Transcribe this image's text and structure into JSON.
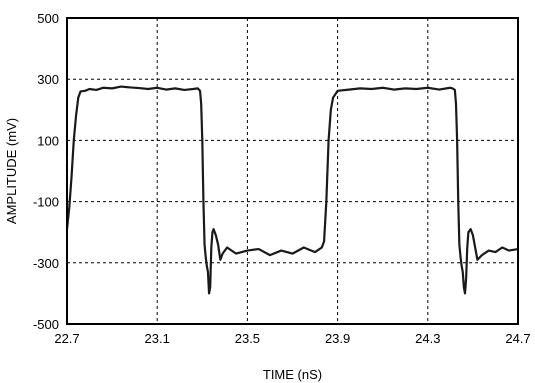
{
  "chart_data": {
    "type": "line",
    "title": "",
    "xlabel": "TIME (nS)",
    "ylabel": "AMPLITUDE (mV)",
    "xlim": [
      22.7,
      24.7
    ],
    "ylim": [
      -500,
      500
    ],
    "x_ticks": [
      22.7,
      23.1,
      23.5,
      23.9,
      24.3,
      24.7
    ],
    "x_tick_labels": [
      "22.7",
      "23.1",
      "23.5",
      "23.9",
      "24.3",
      "24.7"
    ],
    "y_ticks": [
      500,
      300,
      100,
      -100,
      -300,
      -500
    ],
    "y_tick_labels": [
      "500",
      "300",
      "100",
      "-100",
      "-300",
      "-500"
    ],
    "grid": true,
    "line_color": "#1a1a1a",
    "series": [
      {
        "x": [
          22.7,
          22.71,
          22.72,
          22.73,
          22.74,
          22.75,
          22.76,
          22.78,
          22.8,
          22.83,
          22.86,
          22.9,
          22.94,
          22.98,
          23.02,
          23.06,
          23.1,
          23.14,
          23.18,
          23.22,
          23.26,
          23.28,
          23.29,
          23.295,
          23.3,
          23.305,
          23.31,
          23.315,
          23.32,
          23.325,
          23.33,
          23.335,
          23.34,
          23.345,
          23.35,
          23.36,
          23.37,
          23.38,
          23.39,
          23.41,
          23.45,
          23.5,
          23.55,
          23.6,
          23.65,
          23.7,
          23.75,
          23.8,
          23.83,
          23.84,
          23.85,
          23.86,
          23.87,
          23.88,
          23.9,
          23.95,
          24.0,
          24.05,
          24.1,
          24.15,
          24.2,
          24.25,
          24.3,
          24.35,
          24.4,
          24.41,
          24.42,
          24.425,
          24.43,
          24.435,
          24.44,
          24.445,
          24.45,
          24.455,
          24.46,
          24.465,
          24.47,
          24.475,
          24.48,
          24.49,
          24.5,
          24.51,
          24.52,
          24.54,
          24.57,
          24.6,
          24.63,
          24.66,
          24.7
        ],
        "y": [
          -190,
          -120,
          -20,
          100,
          180,
          240,
          260,
          262,
          268,
          265,
          272,
          270,
          276,
          273,
          271,
          268,
          272,
          266,
          270,
          265,
          268,
          270,
          262,
          220,
          100,
          -100,
          -240,
          -280,
          -310,
          -330,
          -400,
          -380,
          -250,
          -200,
          -190,
          -210,
          -240,
          -290,
          -270,
          -250,
          -270,
          -260,
          -255,
          -275,
          -260,
          -270,
          -250,
          -265,
          -250,
          -230,
          -100,
          100,
          200,
          240,
          262,
          266,
          270,
          268,
          272,
          266,
          270,
          268,
          272,
          266,
          272,
          270,
          265,
          220,
          100,
          -100,
          -240,
          -280,
          -310,
          -330,
          -380,
          -400,
          -350,
          -250,
          -200,
          -190,
          -210,
          -250,
          -290,
          -275,
          -260,
          -265,
          -250,
          -260,
          -255
        ]
      }
    ]
  }
}
